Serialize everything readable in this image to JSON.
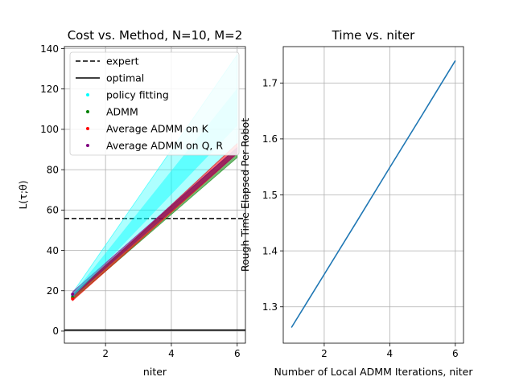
{
  "chart_data": [
    {
      "type": "line",
      "title": "Cost vs. Method, N=10, M=2",
      "xlabel": "niter",
      "ylabel": "L(τ;θ)",
      "xlim": [
        0.75,
        6.25
      ],
      "ylim": [
        -6,
        141
      ],
      "xticks": [
        2,
        4,
        6
      ],
      "yticks": [
        0,
        20,
        40,
        60,
        80,
        100,
        120,
        140
      ],
      "grid": true,
      "legend_position": "upper-left",
      "legend": [
        "expert",
        "optimal",
        "policy fitting",
        "ADMM",
        "Average ADMM on K",
        "Average ADMM on Q, R"
      ],
      "reference_lines": [
        {
          "name": "expert",
          "y": 55.8,
          "color": "#000000",
          "style": "dashed"
        },
        {
          "name": "optimal",
          "y": 0.5,
          "color": "#000000",
          "style": "solid"
        }
      ],
      "series": [
        {
          "name": "policy fitting",
          "color": "#00ffff",
          "x": [
            1,
            6
          ],
          "low": [
            16,
            93
          ],
          "high": [
            19,
            137
          ]
        },
        {
          "name": "ADMM",
          "color": "#008000",
          "x": [
            1,
            6
          ],
          "low": [
            15.5,
            86
          ],
          "high": [
            18,
            91
          ]
        },
        {
          "name": "Average ADMM on K",
          "color": "#ff0000",
          "x": [
            1,
            6
          ],
          "low": [
            15,
            88
          ],
          "high": [
            17,
            93
          ]
        },
        {
          "name": "Average ADMM on Q, R",
          "color": "#800080",
          "x": [
            1,
            6
          ],
          "low": [
            17,
            88
          ],
          "high": [
            19.5,
            91
          ]
        }
      ]
    },
    {
      "type": "line",
      "title": "Time vs. niter",
      "xlabel": "Number of Local ADMM Iterations, niter",
      "ylabel": "Rough Time Elapsed Per Robot",
      "xlim": [
        0.75,
        6.25
      ],
      "ylim": [
        1.235,
        1.765
      ],
      "xticks": [
        2,
        4,
        6
      ],
      "yticks": [
        1.3,
        1.4,
        1.5,
        1.6,
        1.7
      ],
      "grid": true,
      "series": [
        {
          "color": "#1f77b4",
          "x": [
            1,
            2,
            3,
            4,
            5,
            6
          ],
          "y": [
            1.263,
            1.358,
            1.453,
            1.549,
            1.644,
            1.74
          ]
        }
      ]
    }
  ]
}
